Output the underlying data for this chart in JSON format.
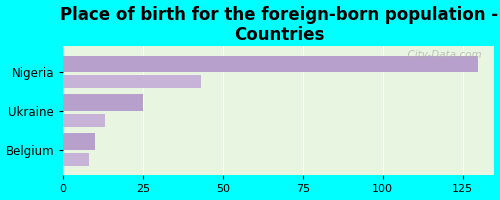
{
  "title": "Place of birth for the foreign-born population -\nCountries",
  "categories": [
    "Nigeria",
    "Ukraine",
    "Belgium"
  ],
  "values1": [
    130,
    25,
    10
  ],
  "values2": [
    43,
    13,
    8
  ],
  "bar_color1": "#b8a0cc",
  "bar_color2": "#c8b3d8",
  "background_outer": "#00FFFF",
  "background_inner": "#e8f5e0",
  "xlim": [
    0,
    135
  ],
  "xticks": [
    0,
    25,
    50,
    75,
    100,
    125
  ],
  "title_fontsize": 12,
  "watermark": "  City-Data.com"
}
